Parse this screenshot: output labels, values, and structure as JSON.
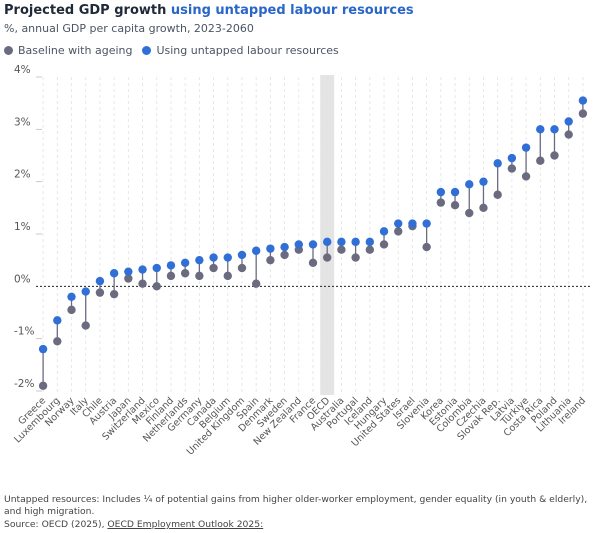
{
  "header": {
    "title_plain": "Projected GDP growth",
    "title_highlight": "using untapped labour resources",
    "subtitle": "%, annual GDP per capita growth, 2023-2060"
  },
  "colors": {
    "baseline": "#6b6b80",
    "untapped": "#2f6fd6",
    "title_accent": "#2a66c8",
    "oecd_band": "#e4e4e4"
  },
  "legend": {
    "baseline_label": "Baseline with ageing",
    "untapped_label": "Using untapped labour resources"
  },
  "chart_data": {
    "type": "dumbbell",
    "title": "Projected GDP growth using untapped labour resources",
    "subtitle": "%, annual GDP per capita growth, 2023-2060",
    "ylabel": "",
    "xlabel": "",
    "ylim": [
      -2,
      4
    ],
    "yticks": [
      -2,
      -1,
      0,
      1,
      2,
      3,
      4
    ],
    "ytick_labels": [
      "-2%",
      "-1%",
      "0%",
      "1%",
      "2%",
      "3%",
      "4%"
    ],
    "highlight_category": "OECD",
    "categories": [
      "Greece",
      "Luxembourg",
      "Norway",
      "Italy",
      "Chile",
      "Austria",
      "Japan",
      "Switzerland",
      "Mexico",
      "Finland",
      "Netherlands",
      "Germany",
      "Canada",
      "Belgium",
      "United Kingdom",
      "Spain",
      "Denmark",
      "Sweden",
      "New Zealand",
      "France",
      "OECD",
      "Australia",
      "Portugal",
      "Iceland",
      "Hungary",
      "United States",
      "Israel",
      "Slovenia",
      "Korea",
      "Estonia",
      "Colombia",
      "Czechia",
      "Slovak Rep.",
      "Latvia",
      "Türkiye",
      "Costa Rica",
      "Poland",
      "Lithuania",
      "Ireland"
    ],
    "series": [
      {
        "name": "Baseline with ageing",
        "values": [
          -1.9,
          -1.05,
          -0.45,
          -0.75,
          -0.12,
          -0.15,
          0.15,
          0.05,
          0.0,
          0.2,
          0.25,
          0.2,
          0.35,
          0.2,
          0.35,
          0.05,
          0.5,
          0.6,
          0.7,
          0.45,
          0.55,
          0.7,
          0.55,
          0.7,
          0.8,
          1.05,
          1.15,
          0.75,
          1.6,
          1.55,
          1.4,
          1.5,
          1.75,
          2.25,
          2.1,
          2.4,
          2.5,
          2.9,
          3.3
        ]
      },
      {
        "name": "Using untapped labour resources",
        "values": [
          -1.2,
          -0.65,
          -0.2,
          -0.1,
          0.1,
          0.25,
          0.28,
          0.32,
          0.35,
          0.4,
          0.45,
          0.5,
          0.55,
          0.55,
          0.6,
          0.68,
          0.72,
          0.75,
          0.8,
          0.8,
          0.85,
          0.85,
          0.85,
          0.85,
          1.05,
          1.2,
          1.2,
          1.2,
          1.8,
          1.8,
          1.95,
          2.0,
          2.35,
          2.45,
          2.65,
          3.0,
          3.0,
          3.15,
          3.55
        ]
      }
    ]
  },
  "footer": {
    "note": "Untapped resources: Includes ¼ of potential gains from higher older-worker employment, gender equality (in youth & elderly), and high migration.",
    "source_prefix": "Source: OECD (2025),",
    "source_link": "OECD Employment Outlook 2025:"
  }
}
